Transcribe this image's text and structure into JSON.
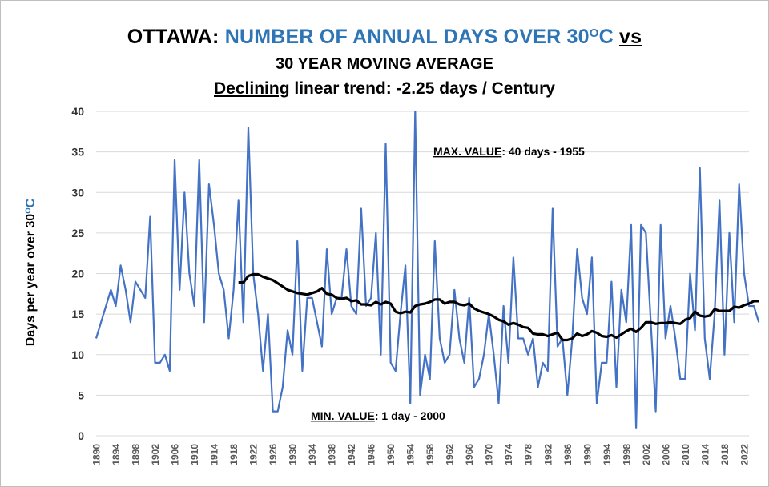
{
  "title": {
    "line1_a": "OTTAWA: ",
    "line1_b": "NUMBER OF ANNUAL DAYS OVER 30",
    "line1_b_sup": "O",
    "line1_b_c": "C",
    "line1_c": "vs",
    "line2": "30 YEAR MOVING AVERAGE",
    "line3_a": "Declining",
    "line3_b": " linear trend: -2.25 days / Century"
  },
  "colors": {
    "annual": "#4472c4",
    "moving_avg": "#000000",
    "grid": "#d9d9d9",
    "title_blue": "#2e75b6"
  },
  "chart_data": {
    "type": "line",
    "ylabel_a": "Days per year over 30",
    "ylabel_sup": "O",
    "ylabel_c": "C",
    "ylim": [
      0,
      40
    ],
    "yticks": [
      0,
      5,
      10,
      15,
      20,
      25,
      30,
      35,
      40
    ],
    "xlim": [
      1890,
      2023
    ],
    "xticks": [
      1890,
      1894,
      1898,
      1902,
      1906,
      1910,
      1914,
      1918,
      1922,
      1926,
      1930,
      1934,
      1938,
      1942,
      1946,
      1950,
      1954,
      1958,
      1962,
      1966,
      1970,
      1974,
      1978,
      1982,
      1986,
      1990,
      1994,
      1998,
      2002,
      2006,
      2010,
      2014,
      2018,
      2022
    ],
    "grid": "horizontal",
    "annotations": [
      {
        "label_u": "MAX. VALUE",
        "label_rest": ": 40 days - 1955",
        "x": 1955,
        "y": 40
      },
      {
        "label_u": "MIN. VALUE",
        "label_rest": ": 1 day - 2000",
        "x": 2000,
        "y": 1
      }
    ],
    "series": [
      {
        "type": "annual",
        "x_start": 1890,
        "values": [
          12,
          14,
          16,
          18,
          16,
          21,
          18,
          14,
          19,
          18,
          17,
          27,
          9,
          9,
          10,
          8,
          34,
          18,
          30,
          20,
          16,
          34,
          14,
          31,
          26,
          20,
          18,
          12,
          18,
          29,
          14,
          38,
          20,
          15,
          8,
          15,
          3,
          3,
          6,
          13,
          10,
          24,
          8,
          17,
          17,
          14,
          11,
          23,
          15,
          17,
          17,
          23,
          16,
          15,
          28,
          16,
          17,
          25,
          10,
          36,
          9,
          8,
          15,
          21,
          4,
          40,
          5,
          10,
          7,
          24,
          12,
          9,
          10,
          18,
          12,
          9,
          17,
          6,
          7,
          10,
          15,
          10,
          4,
          16,
          9,
          22,
          12,
          12,
          10,
          12,
          6,
          9,
          8,
          28,
          11,
          12,
          5,
          12,
          23,
          17,
          15,
          22,
          4,
          9,
          9,
          19,
          6,
          18,
          14,
          26,
          1,
          26,
          25,
          14,
          3,
          26,
          12,
          16,
          12,
          7,
          7,
          20,
          13,
          33,
          12,
          7,
          15,
          29,
          10,
          25,
          14,
          31,
          20,
          16,
          16,
          14
        ]
      },
      {
        "type": "moving_average",
        "x_start": 1919,
        "values": [
          18.9,
          18.9,
          19.7,
          19.9,
          19.9,
          19.6,
          19.4,
          19.2,
          18.8,
          18.4,
          18.0,
          17.8,
          17.6,
          17.5,
          17.4,
          17.6,
          17.8,
          18.2,
          17.5,
          17.4,
          17.0,
          16.9,
          17.0,
          16.6,
          16.7,
          16.2,
          16.2,
          16.1,
          16.5,
          16.2,
          16.5,
          16.3,
          15.3,
          15.1,
          15.3,
          15.2,
          16.0,
          16.2,
          16.3,
          16.5,
          16.8,
          16.8,
          16.3,
          16.5,
          16.5,
          16.2,
          16.1,
          16.3,
          15.7,
          15.4,
          15.2,
          15.0,
          14.7,
          14.3,
          14.1,
          13.7,
          13.9,
          13.7,
          13.4,
          13.3,
          12.6,
          12.5,
          12.5,
          12.3,
          12.5,
          12.7,
          11.8,
          11.8,
          12.0,
          12.6,
          12.3,
          12.5,
          12.9,
          12.7,
          12.3,
          12.2,
          12.4,
          12.1,
          12.5,
          12.9,
          13.2,
          12.8,
          13.3,
          14.0,
          14.0,
          13.8,
          13.9,
          13.9,
          14.0,
          13.9,
          13.8,
          14.3,
          14.5,
          15.3,
          14.8,
          14.7,
          14.8,
          15.6,
          15.4,
          15.4,
          15.4,
          15.9,
          15.8,
          16.1,
          16.3,
          16.6,
          16.6
        ]
      }
    ]
  }
}
